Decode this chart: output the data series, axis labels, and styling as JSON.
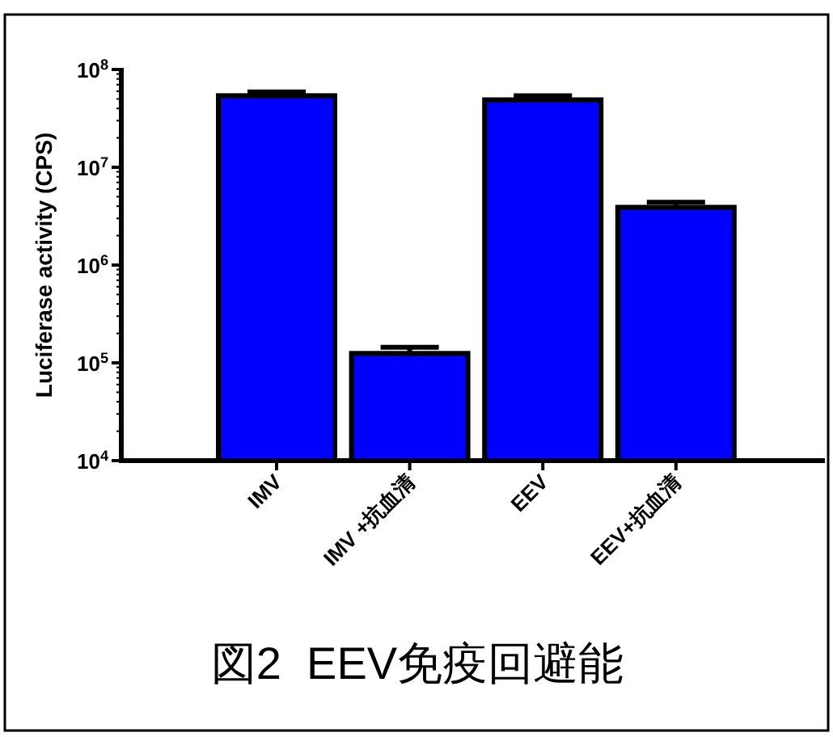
{
  "chart_data": {
    "type": "bar",
    "title": "図2  EEV免疫回避能",
    "ylabel": "Luciferase activity (CPS)",
    "categories": [
      "IMV",
      "IMV +抗血清",
      "EEV",
      "EEV+抗血清"
    ],
    "values": [
      54000000,
      125000,
      49000000,
      3900000
    ],
    "errors": [
      [
        54000000,
        59000000
      ],
      [
        125000,
        144000
      ],
      [
        49000000,
        54000000
      ],
      [
        3900000,
        4400000
      ]
    ],
    "color": "#0000ff",
    "log": "y",
    "ylim": [
      10000,
      100000000
    ],
    "yticks": [
      {
        "value": 10000,
        "label": "10$^{4}$"
      },
      {
        "value": 100000,
        "label": "10$^{5}$"
      },
      {
        "value": 1000000,
        "label": "10$^{6}$"
      },
      {
        "value": 10000000,
        "label": "10$^{7}$"
      },
      {
        "value": 100000000,
        "label": "10$^{8}$"
      }
    ]
  }
}
